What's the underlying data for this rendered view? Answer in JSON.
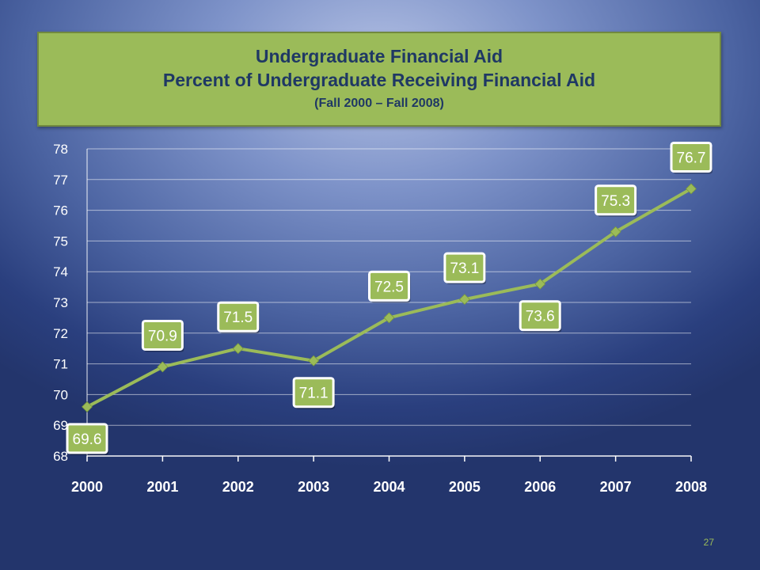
{
  "slide": {
    "page_number": "27"
  },
  "chart_data": {
    "type": "line",
    "title": "Undergraduate Financial Aid",
    "subtitle": "Percent of Undergraduate Receiving Financial Aid",
    "subsubtitle": "(Fall 2000 – Fall 2008)",
    "categories": [
      "2000",
      "2001",
      "2002",
      "2003",
      "2004",
      "2005",
      "2006",
      "2007",
      "2008"
    ],
    "values": [
      69.6,
      70.9,
      71.5,
      71.1,
      72.5,
      73.1,
      73.6,
      75.3,
      76.7
    ],
    "label_position": [
      "below",
      "above",
      "above",
      "below",
      "above",
      "above",
      "below",
      "above",
      "above"
    ],
    "ylim": [
      68,
      78
    ],
    "yticks": [
      68,
      69,
      70,
      71,
      72,
      73,
      74,
      75,
      76,
      77,
      78
    ],
    "grid": true,
    "legend": "none",
    "colors": {
      "line": "#9bbb59",
      "label_fill": "#9bbb59",
      "label_border": "#ffffff",
      "text": "#ffffff",
      "title_text": "#1f3864"
    }
  }
}
